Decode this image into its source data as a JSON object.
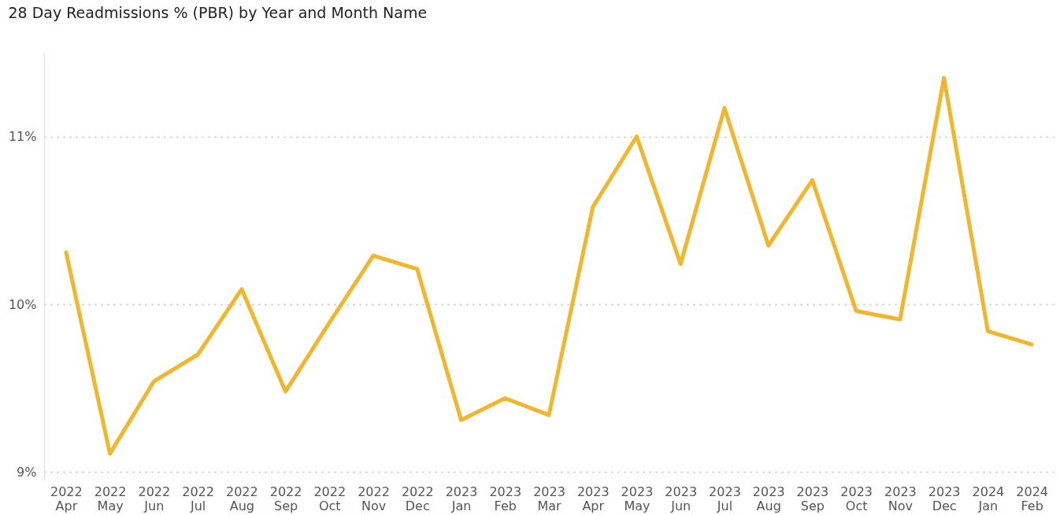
{
  "chart_data": {
    "type": "line",
    "title": "28 Day Readmissions % (PBR) by Year and Month Name",
    "categories": [
      "2022 Apr",
      "2022 May",
      "2022 Jun",
      "2022 Jul",
      "2022 Aug",
      "2022 Sep",
      "2022 Oct",
      "2022 Nov",
      "2022 Dec",
      "2023 Jan",
      "2023 Feb",
      "2023 Mar",
      "2023 Apr",
      "2023 May",
      "2023 Jun",
      "2023 Jul",
      "2023 Aug",
      "2023 Sep",
      "2023 Oct",
      "2023 Nov",
      "2023 Dec",
      "2024 Jan",
      "2024 Feb"
    ],
    "series": [
      {
        "color": "#f2b52c",
        "values": [
          10.31,
          9.11,
          9.54,
          9.7,
          10.09,
          9.48,
          9.89,
          10.29,
          10.21,
          9.31,
          9.44,
          9.34,
          10.58,
          11.0,
          10.24,
          11.17,
          10.35,
          10.74,
          9.96,
          9.91,
          11.35,
          9.84,
          9.76
        ]
      }
    ],
    "ylim": [
      8.95,
      11.5
    ],
    "yticks": [
      {
        "value": 9,
        "label": "9%"
      },
      {
        "value": 10,
        "label": "10%"
      },
      {
        "value": 11,
        "label": "11%"
      }
    ],
    "grid": "y",
    "marker": "none",
    "line_style": "solid",
    "legend": false
  }
}
